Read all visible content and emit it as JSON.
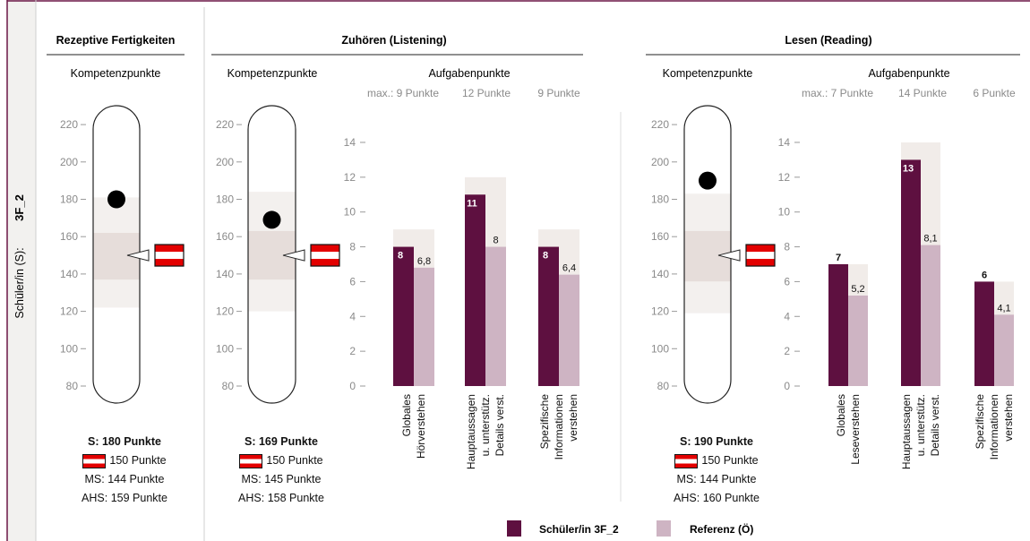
{
  "student": {
    "id": "3F_2",
    "label": "Schüler/in (S):"
  },
  "legend": {
    "student": "Schüler/in 3F_2",
    "reference": "Referenz (Ö)"
  },
  "colors": {
    "student": "#5e1040",
    "reference": "#ceb4c3",
    "band_light": "#f3f0ee",
    "band_dark": "#e6ddda",
    "max_bg": "#f1ece9",
    "frame": "#6b1747",
    "sidebar_bg": "#f2f1ef"
  },
  "panels": {
    "rezeptiv": {
      "title": "Rezeptive Fertigkeiten",
      "subtitle": "Kompetenzpunkte",
      "summary": {
        "s": "S: 180 Punkte",
        "at": "150 Punkte",
        "ms": "MS: 144 Punkte",
        "ahs": "AHS: 159 Punkte"
      }
    },
    "zuhoeren": {
      "title": "Zuhören (Listening)",
      "comp_subtitle": "Kompetenzpunkte",
      "task_subtitle": "Aufgabenpunkte",
      "max_labels": [
        "max.: 9 Punkte",
        "12 Punkte",
        "9 Punkte"
      ],
      "summary": {
        "s": "S: 169 Punkte",
        "at": "150 Punkte",
        "ms": "MS: 145 Punkte",
        "ahs": "AHS: 158 Punkte"
      }
    },
    "lesen": {
      "title": "Lesen (Reading)",
      "comp_subtitle": "Kompetenzpunkte",
      "task_subtitle": "Aufgabenpunkte",
      "max_labels": [
        "max.: 7 Punkte",
        "14 Punkte",
        "6 Punkte"
      ],
      "summary": {
        "s": "S: 190 Punkte",
        "at": "150 Punkte",
        "ms": "MS: 144 Punkte",
        "ahs": "AHS: 160 Punkte"
      }
    }
  },
  "chart_data": [
    {
      "type": "gauge",
      "panel": "Rezeptive Fertigkeiten",
      "yticks": [
        "80",
        "100",
        "120",
        "140",
        "160",
        "180",
        "200",
        "220"
      ],
      "ylim": [
        70,
        230
      ],
      "student": 180,
      "austria": 150,
      "band_outer": [
        122,
        181
      ],
      "band_inner": [
        137,
        162
      ]
    },
    {
      "type": "gauge",
      "panel": "Zuhören (Listening)",
      "yticks": [
        "80",
        "100",
        "120",
        "140",
        "160",
        "180",
        "200",
        "220"
      ],
      "ylim": [
        70,
        230
      ],
      "student": 169,
      "austria": 150,
      "band_outer": [
        120,
        184
      ],
      "band_inner": [
        137,
        163
      ]
    },
    {
      "type": "bar",
      "panel": "Zuhören (Listening)",
      "ylim": [
        0,
        14
      ],
      "yticks": [
        "0",
        "2",
        "4",
        "6",
        "8",
        "10",
        "12",
        "14"
      ],
      "categories": [
        [
          "Globales",
          "Hörverstehen"
        ],
        [
          "Hauptaussagen",
          "u. unterstütz.",
          "Details verst."
        ],
        [
          "Spezifische",
          "Informationen",
          "verstehen"
        ]
      ],
      "max": [
        9,
        12,
        9
      ],
      "series": [
        {
          "name": "Schüler/in 3F_2",
          "values": [
            8,
            11,
            8
          ],
          "labels": [
            "8",
            "11",
            "8"
          ]
        },
        {
          "name": "Referenz (Ö)",
          "values": [
            6.8,
            8,
            6.4
          ],
          "labels": [
            "6,8",
            "8",
            "6,4"
          ]
        }
      ]
    },
    {
      "type": "gauge",
      "panel": "Lesen (Reading)",
      "yticks": [
        "80",
        "100",
        "120",
        "140",
        "160",
        "180",
        "200",
        "220"
      ],
      "ylim": [
        70,
        230
      ],
      "student": 190,
      "austria": 150,
      "band_outer": [
        119,
        183
      ],
      "band_inner": [
        136,
        163
      ]
    },
    {
      "type": "bar",
      "panel": "Lesen (Reading)",
      "ylim": [
        0,
        14
      ],
      "yticks": [
        "0",
        "2",
        "4",
        "6",
        "8",
        "10",
        "12",
        "14"
      ],
      "categories": [
        [
          "Globales",
          "Leseverstehen"
        ],
        [
          "Hauptaussagen",
          "u. unterstütz.",
          "Details verst."
        ],
        [
          "Spezifische",
          "Informationen",
          "verstehen"
        ]
      ],
      "max": [
        7,
        14,
        6
      ],
      "series": [
        {
          "name": "Schüler/in 3F_2",
          "values": [
            7,
            13,
            6
          ],
          "labels": [
            "7",
            "13",
            "6"
          ]
        },
        {
          "name": "Referenz (Ö)",
          "values": [
            5.2,
            8.1,
            4.1
          ],
          "labels": [
            "5,2",
            "8,1",
            "4,1"
          ]
        }
      ]
    }
  ]
}
